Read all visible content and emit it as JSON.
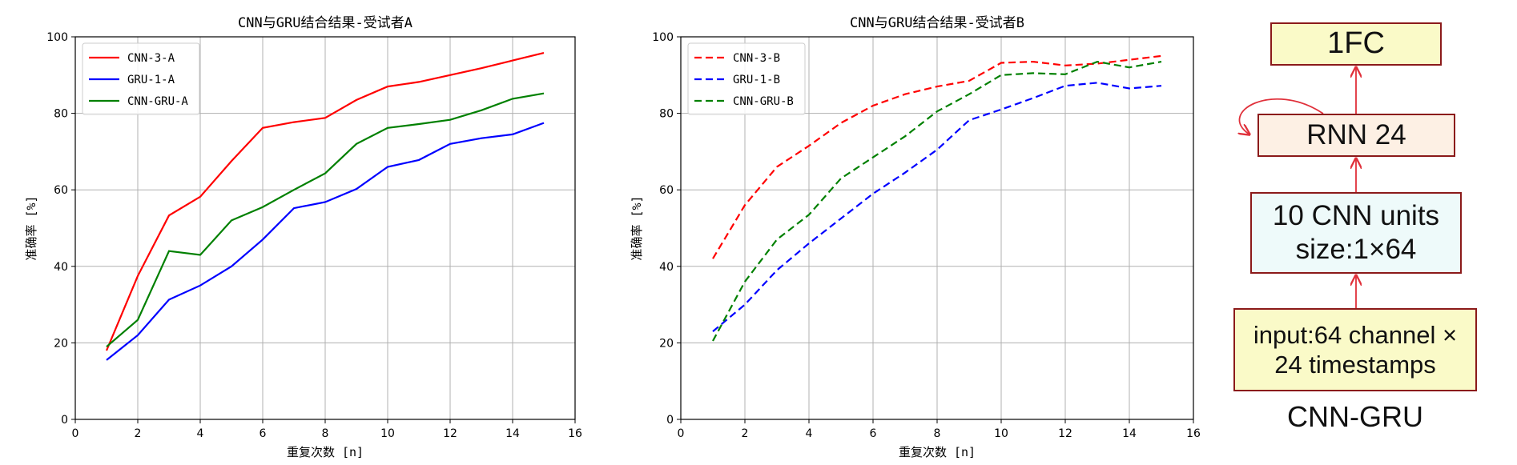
{
  "chart_data": [
    {
      "type": "line",
      "title": "CNN与GRU结合结果-受试者A",
      "xlabel": "重复次数 [n]",
      "ylabel": "准确率 [%]",
      "xlim": [
        0,
        16
      ],
      "ylim": [
        0,
        100
      ],
      "xticks": [
        0,
        2,
        4,
        6,
        8,
        10,
        12,
        14,
        16
      ],
      "yticks": [
        0,
        20,
        40,
        60,
        80,
        100
      ],
      "grid": true,
      "legend_position": "top-left",
      "x": [
        1,
        2,
        3,
        4,
        5,
        6,
        7,
        8,
        9,
        10,
        11,
        12,
        13,
        14,
        15
      ],
      "series": [
        {
          "name": "CNN-3-A",
          "color": "#ff0000",
          "style": "solid",
          "values": [
            18,
            37.5,
            53.3,
            58.2,
            67.5,
            76.2,
            77.7,
            78.8,
            83.5,
            87,
            88.2,
            90,
            91.8,
            93.8,
            95.8
          ]
        },
        {
          "name": "GRU-1-A",
          "color": "#0000ff",
          "style": "solid",
          "values": [
            15.5,
            22,
            31.3,
            35,
            40,
            47,
            55.2,
            56.8,
            60.2,
            66,
            67.8,
            72,
            73.5,
            74.5,
            77.5
          ]
        },
        {
          "name": "CNN-GRU-A",
          "color": "#008000",
          "style": "solid",
          "values": [
            19,
            26,
            44,
            43,
            52,
            55.5,
            60,
            64.3,
            72,
            76.2,
            77.2,
            78.3,
            80.8,
            83.8,
            85.2
          ]
        }
      ]
    },
    {
      "type": "line",
      "title": "CNN与GRU结合结果-受试者B",
      "xlabel": "重复次数 [n]",
      "ylabel": "准确率 [%]",
      "xlim": [
        0,
        16
      ],
      "ylim": [
        0,
        100
      ],
      "xticks": [
        0,
        2,
        4,
        6,
        8,
        10,
        12,
        14,
        16
      ],
      "yticks": [
        0,
        20,
        40,
        60,
        80,
        100
      ],
      "grid": true,
      "legend_position": "top-left",
      "x": [
        1,
        2,
        3,
        4,
        5,
        6,
        7,
        8,
        9,
        10,
        11,
        12,
        13,
        14,
        15
      ],
      "series": [
        {
          "name": "CNN-3-B",
          "color": "#ff0000",
          "style": "dashed",
          "values": [
            42,
            56,
            66,
            71.5,
            77.5,
            82,
            85,
            87,
            88.5,
            93.2,
            93.5,
            92.5,
            93,
            94,
            95
          ]
        },
        {
          "name": "GRU-1-B",
          "color": "#0000ff",
          "style": "dashed",
          "values": [
            23,
            30,
            39,
            46,
            52.5,
            59,
            64.5,
            70.5,
            78.2,
            81,
            84,
            87.2,
            88,
            86.5,
            87.2
          ]
        },
        {
          "name": "CNN-GRU-B",
          "color": "#008000",
          "style": "dashed",
          "values": [
            20.5,
            36,
            47,
            53.5,
            63,
            68.5,
            74,
            80.5,
            85,
            90,
            90.5,
            90.2,
            93.5,
            92,
            93.5
          ]
        }
      ]
    }
  ],
  "diagram": {
    "boxes": [
      {
        "lines": [
          "1FC"
        ],
        "fill": "#fafac8"
      },
      {
        "lines": [
          "RNN 24"
        ],
        "fill": "#fdf0e4"
      },
      {
        "lines": [
          "10 CNN units",
          "size:1×64"
        ],
        "fill": "#eefafa"
      },
      {
        "lines": [
          "input:64 channel ×",
          "24 timestamps"
        ],
        "fill": "#fafac8"
      }
    ],
    "caption": "CNN-GRU",
    "arrow_color": "#e0303a"
  }
}
